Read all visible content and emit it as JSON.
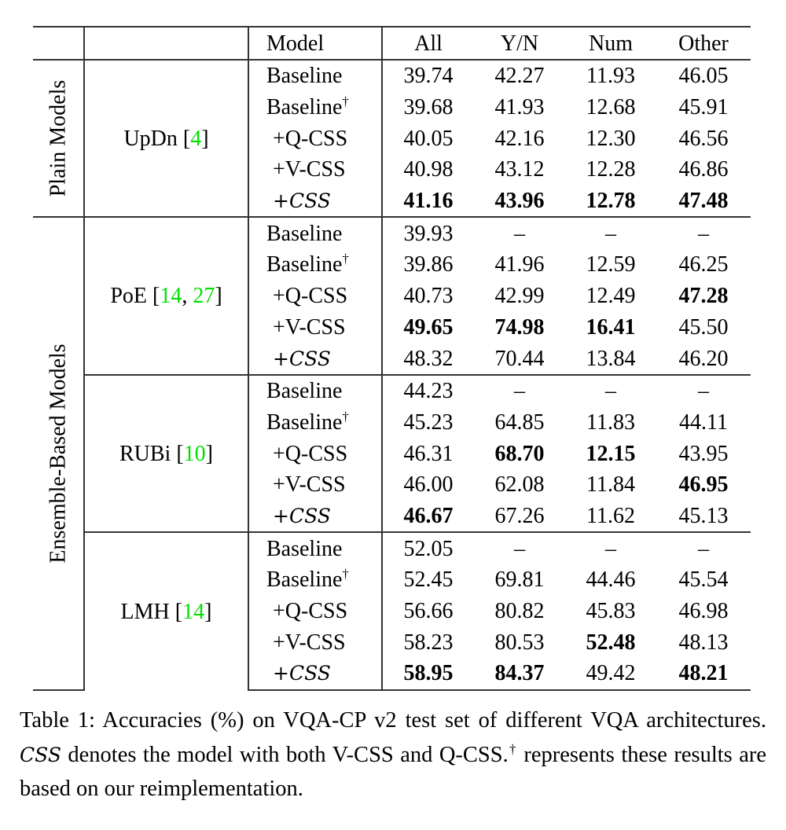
{
  "header": {
    "model": "Model",
    "columns": [
      "All",
      "Y/N",
      "Num",
      "Other"
    ]
  },
  "categories": [
    {
      "label": "Plain Models"
    },
    {
      "label": "Ensemble-Based Models"
    }
  ],
  "groups": [
    {
      "category": 0,
      "name": "UpDn",
      "citations": [
        "4"
      ],
      "rows": [
        {
          "model": "Baseline",
          "dagger": false,
          "values": [
            "39.74",
            "42.27",
            "11.93",
            "46.05"
          ],
          "bold": [
            false,
            false,
            false,
            false
          ]
        },
        {
          "model": "Baseline",
          "dagger": true,
          "values": [
            "39.68",
            "41.93",
            "12.68",
            "45.91"
          ],
          "bold": [
            false,
            false,
            false,
            false
          ]
        },
        {
          "model": "+Q-CSS",
          "dagger": false,
          "values": [
            "40.05",
            "42.16",
            "12.30",
            "46.56"
          ],
          "bold": [
            false,
            false,
            false,
            false
          ]
        },
        {
          "model": "+V-CSS",
          "dagger": false,
          "values": [
            "40.98",
            "43.12",
            "12.28",
            "46.86"
          ],
          "bold": [
            false,
            false,
            false,
            false
          ]
        },
        {
          "model": "+CSS",
          "dagger": false,
          "calligraphic": true,
          "values": [
            "41.16",
            "43.96",
            "12.78",
            "47.48"
          ],
          "bold": [
            true,
            true,
            true,
            true
          ]
        }
      ]
    },
    {
      "category": 1,
      "name": "PoE",
      "citations": [
        "14",
        "27"
      ],
      "rows": [
        {
          "model": "Baseline",
          "dagger": false,
          "values": [
            "39.93",
            "–",
            "–",
            "–"
          ],
          "bold": [
            false,
            false,
            false,
            false
          ]
        },
        {
          "model": "Baseline",
          "dagger": true,
          "values": [
            "39.86",
            "41.96",
            "12.59",
            "46.25"
          ],
          "bold": [
            false,
            false,
            false,
            false
          ]
        },
        {
          "model": "+Q-CSS",
          "dagger": false,
          "values": [
            "40.73",
            "42.99",
            "12.49",
            "47.28"
          ],
          "bold": [
            false,
            false,
            false,
            true
          ]
        },
        {
          "model": "+V-CSS",
          "dagger": false,
          "values": [
            "49.65",
            "74.98",
            "16.41",
            "45.50"
          ],
          "bold": [
            true,
            true,
            true,
            false
          ]
        },
        {
          "model": "+CSS",
          "dagger": false,
          "calligraphic": true,
          "values": [
            "48.32",
            "70.44",
            "13.84",
            "46.20"
          ],
          "bold": [
            false,
            false,
            false,
            false
          ]
        }
      ]
    },
    {
      "category": 1,
      "name": "RUBi",
      "citations": [
        "10"
      ],
      "rows": [
        {
          "model": "Baseline",
          "dagger": false,
          "values": [
            "44.23",
            "–",
            "–",
            "–"
          ],
          "bold": [
            false,
            false,
            false,
            false
          ]
        },
        {
          "model": "Baseline",
          "dagger": true,
          "values": [
            "45.23",
            "64.85",
            "11.83",
            "44.11"
          ],
          "bold": [
            false,
            false,
            false,
            false
          ]
        },
        {
          "model": "+Q-CSS",
          "dagger": false,
          "values": [
            "46.31",
            "68.70",
            "12.15",
            "43.95"
          ],
          "bold": [
            false,
            true,
            true,
            false
          ]
        },
        {
          "model": "+V-CSS",
          "dagger": false,
          "values": [
            "46.00",
            "62.08",
            "11.84",
            "46.95"
          ],
          "bold": [
            false,
            false,
            false,
            true
          ]
        },
        {
          "model": "+CSS",
          "dagger": false,
          "calligraphic": true,
          "values": [
            "46.67",
            "67.26",
            "11.62",
            "45.13"
          ],
          "bold": [
            true,
            false,
            false,
            false
          ]
        }
      ]
    },
    {
      "category": 1,
      "name": "LMH",
      "citations": [
        "14"
      ],
      "rows": [
        {
          "model": "Baseline",
          "dagger": false,
          "values": [
            "52.05",
            "–",
            "–",
            "–"
          ],
          "bold": [
            false,
            false,
            false,
            false
          ]
        },
        {
          "model": "Baseline",
          "dagger": true,
          "values": [
            "52.45",
            "69.81",
            "44.46",
            "45.54"
          ],
          "bold": [
            false,
            false,
            false,
            false
          ]
        },
        {
          "model": "+Q-CSS",
          "dagger": false,
          "values": [
            "56.66",
            "80.82",
            "45.83",
            "46.98"
          ],
          "bold": [
            false,
            false,
            false,
            false
          ]
        },
        {
          "model": "+V-CSS",
          "dagger": false,
          "values": [
            "58.23",
            "80.53",
            "52.48",
            "48.13"
          ],
          "bold": [
            false,
            false,
            true,
            false
          ]
        },
        {
          "model": "+CSS",
          "dagger": false,
          "calligraphic": true,
          "values": [
            "58.95",
            "84.37",
            "49.42",
            "48.21"
          ],
          "bold": [
            true,
            true,
            false,
            true
          ]
        }
      ]
    }
  ],
  "caption": {
    "part1": "Table 1: Accuracies (%) on VQA-CP v2 test set of different VQA architectures. ",
    "css": "CSS",
    "part2": " denotes the model with both V-CSS and Q-CSS.",
    "dagger": "†",
    "part3": " represents these results are based on our reimplementation."
  },
  "citation_color": "#00e000"
}
